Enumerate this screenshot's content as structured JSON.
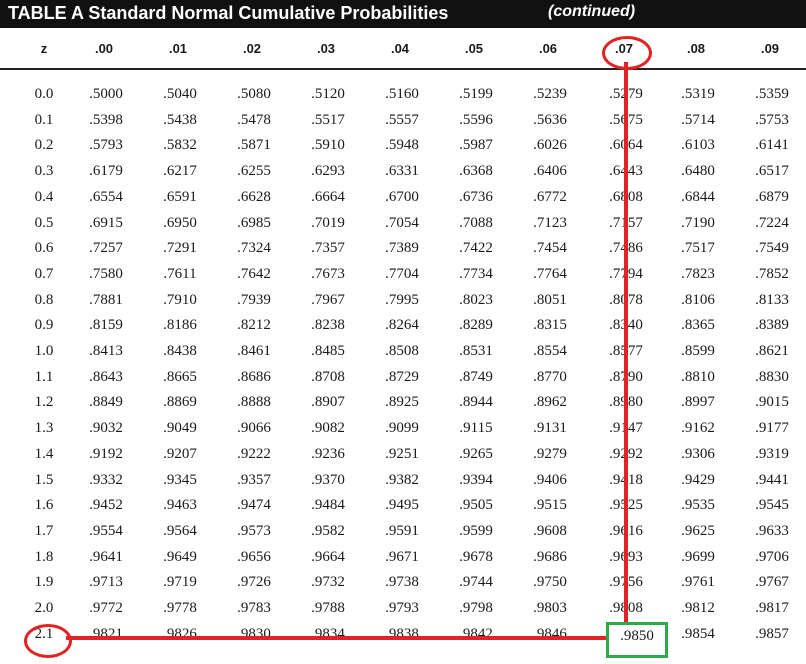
{
  "title": "TABLE A  Standard Normal Cumulative Probabilities",
  "continued": "(continued)",
  "z_header": "z",
  "columns": [
    ".00",
    ".01",
    ".02",
    ".03",
    ".04",
    ".05",
    ".06",
    ".07",
    ".08",
    ".09"
  ],
  "rows": [
    {
      "z": "0.0",
      "values": [
        ".5000",
        ".5040",
        ".5080",
        ".5120",
        ".5160",
        ".5199",
        ".5239",
        ".5279",
        ".5319",
        ".5359"
      ]
    },
    {
      "z": "0.1",
      "values": [
        ".5398",
        ".5438",
        ".5478",
        ".5517",
        ".5557",
        ".5596",
        ".5636",
        ".5675",
        ".5714",
        ".5753"
      ]
    },
    {
      "z": "0.2",
      "values": [
        ".5793",
        ".5832",
        ".5871",
        ".5910",
        ".5948",
        ".5987",
        ".6026",
        ".6064",
        ".6103",
        ".6141"
      ]
    },
    {
      "z": "0.3",
      "values": [
        ".6179",
        ".6217",
        ".6255",
        ".6293",
        ".6331",
        ".6368",
        ".6406",
        ".6443",
        ".6480",
        ".6517"
      ]
    },
    {
      "z": "0.4",
      "values": [
        ".6554",
        ".6591",
        ".6628",
        ".6664",
        ".6700",
        ".6736",
        ".6772",
        ".6808",
        ".6844",
        ".6879"
      ]
    },
    {
      "z": "0.5",
      "values": [
        ".6915",
        ".6950",
        ".6985",
        ".7019",
        ".7054",
        ".7088",
        ".7123",
        ".7157",
        ".7190",
        ".7224"
      ]
    },
    {
      "z": "0.6",
      "values": [
        ".7257",
        ".7291",
        ".7324",
        ".7357",
        ".7389",
        ".7422",
        ".7454",
        ".7486",
        ".7517",
        ".7549"
      ]
    },
    {
      "z": "0.7",
      "values": [
        ".7580",
        ".7611",
        ".7642",
        ".7673",
        ".7704",
        ".7734",
        ".7764",
        ".7794",
        ".7823",
        ".7852"
      ]
    },
    {
      "z": "0.8",
      "values": [
        ".7881",
        ".7910",
        ".7939",
        ".7967",
        ".7995",
        ".8023",
        ".8051",
        ".8078",
        ".8106",
        ".8133"
      ]
    },
    {
      "z": "0.9",
      "values": [
        ".8159",
        ".8186",
        ".8212",
        ".8238",
        ".8264",
        ".8289",
        ".8315",
        ".8340",
        ".8365",
        ".8389"
      ]
    },
    {
      "z": "1.0",
      "values": [
        ".8413",
        ".8438",
        ".8461",
        ".8485",
        ".8508",
        ".8531",
        ".8554",
        ".8577",
        ".8599",
        ".8621"
      ]
    },
    {
      "z": "1.1",
      "values": [
        ".8643",
        ".8665",
        ".8686",
        ".8708",
        ".8729",
        ".8749",
        ".8770",
        ".8790",
        ".8810",
        ".8830"
      ]
    },
    {
      "z": "1.2",
      "values": [
        ".8849",
        ".8869",
        ".8888",
        ".8907",
        ".8925",
        ".8944",
        ".8962",
        ".8980",
        ".8997",
        ".9015"
      ]
    },
    {
      "z": "1.3",
      "values": [
        ".9032",
        ".9049",
        ".9066",
        ".9082",
        ".9099",
        ".9115",
        ".9131",
        ".9147",
        ".9162",
        ".9177"
      ]
    },
    {
      "z": "1.4",
      "values": [
        ".9192",
        ".9207",
        ".9222",
        ".9236",
        ".9251",
        ".9265",
        ".9279",
        ".9292",
        ".9306",
        ".9319"
      ]
    },
    {
      "z": "1.5",
      "values": [
        ".9332",
        ".9345",
        ".9357",
        ".9370",
        ".9382",
        ".9394",
        ".9406",
        ".9418",
        ".9429",
        ".9441"
      ]
    },
    {
      "z": "1.6",
      "values": [
        ".9452",
        ".9463",
        ".9474",
        ".9484",
        ".9495",
        ".9505",
        ".9515",
        ".9525",
        ".9535",
        ".9545"
      ]
    },
    {
      "z": "1.7",
      "values": [
        ".9554",
        ".9564",
        ".9573",
        ".9582",
        ".9591",
        ".9599",
        ".9608",
        ".9616",
        ".9625",
        ".9633"
      ]
    },
    {
      "z": "1.8",
      "values": [
        ".9641",
        ".9649",
        ".9656",
        ".9664",
        ".9671",
        ".9678",
        ".9686",
        ".9693",
        ".9699",
        ".9706"
      ]
    },
    {
      "z": "1.9",
      "values": [
        ".9713",
        ".9719",
        ".9726",
        ".9732",
        ".9738",
        ".9744",
        ".9750",
        ".9756",
        ".9761",
        ".9767"
      ]
    },
    {
      "z": "2.0",
      "values": [
        ".9772",
        ".9778",
        ".9783",
        ".9788",
        ".9793",
        ".9798",
        ".9803",
        ".9808",
        ".9812",
        ".9817"
      ]
    },
    {
      "z": "2.1",
      "values": [
        ".9821",
        ".9826",
        ".9830",
        ".9834",
        ".9838",
        ".9842",
        ".9846",
        ".9850",
        ".9854",
        ".9857"
      ]
    }
  ],
  "highlight": {
    "column": ".07",
    "row": "2.1",
    "value": ".9850",
    "circle_color": "#e32323",
    "line_color": "#e32323",
    "box_color": "#2fa84a"
  }
}
